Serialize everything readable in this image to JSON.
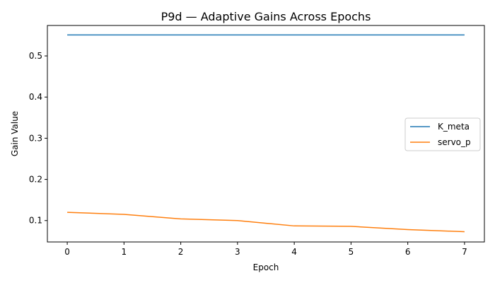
{
  "chart_data": {
    "type": "line",
    "title": "P9d — Adaptive Gains Across Epochs",
    "xlabel": "Epoch",
    "ylabel": "Gain Value",
    "x": [
      0,
      1,
      2,
      3,
      4,
      5,
      6,
      7
    ],
    "xticks": [
      0,
      1,
      2,
      3,
      4,
      5,
      6,
      7
    ],
    "yticks": [
      0.1,
      0.2,
      0.3,
      0.4,
      0.5
    ],
    "xlim": [
      -0.35,
      7.35
    ],
    "ylim": [
      0.048,
      0.574
    ],
    "grid": false,
    "legend_position": "center-right",
    "series": [
      {
        "name": "K_meta",
        "color": "#1f77b4",
        "values": [
          0.551,
          0.551,
          0.551,
          0.551,
          0.551,
          0.551,
          0.551,
          0.551
        ]
      },
      {
        "name": "servo_p",
        "color": "#ff7f0e",
        "values": [
          0.12,
          0.115,
          0.104,
          0.1,
          0.087,
          0.086,
          0.078,
          0.073
        ]
      }
    ]
  }
}
